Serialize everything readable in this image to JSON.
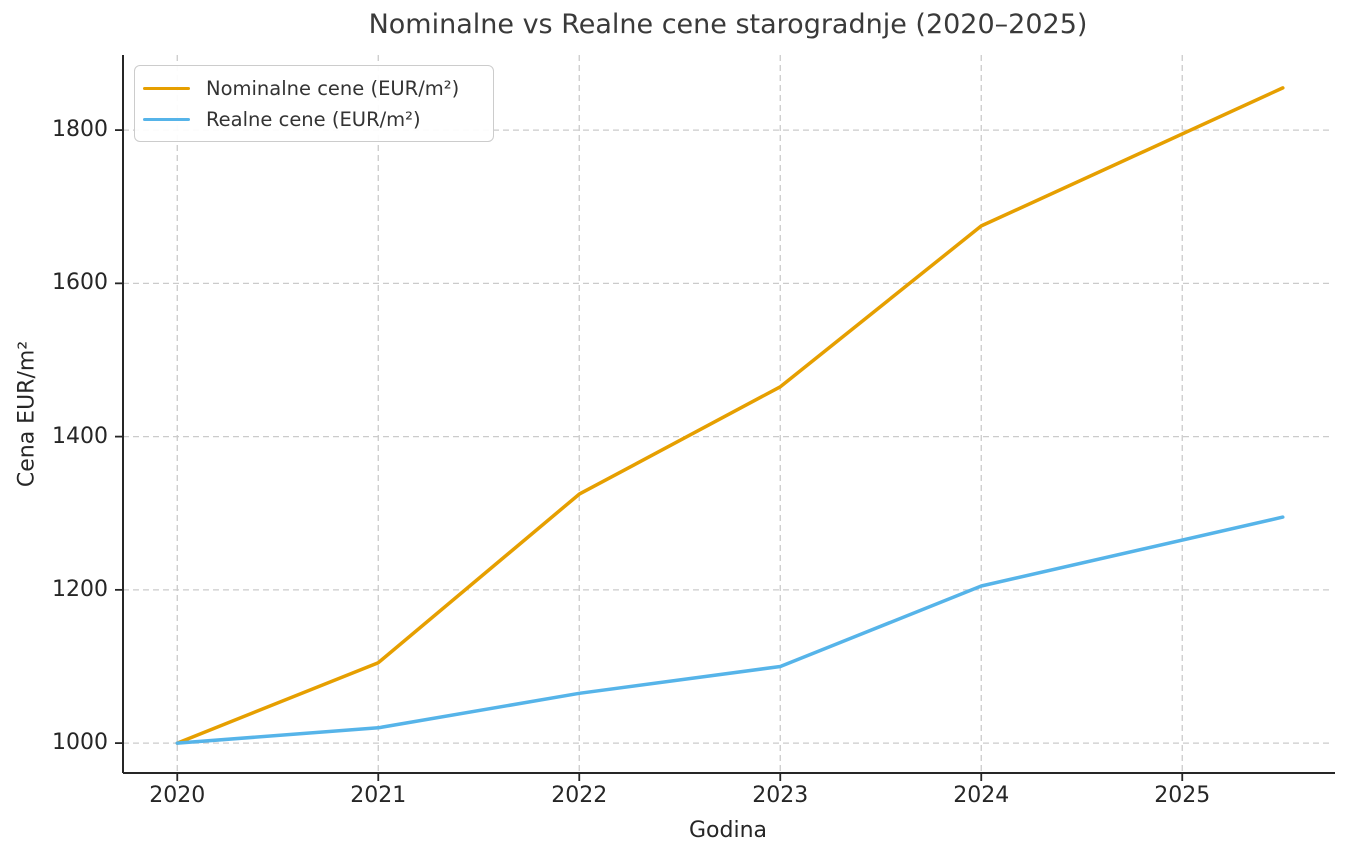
{
  "title": "Nominalne vs Realne cene starogradnje (2020–2025)",
  "chart_data": {
    "type": "line",
    "title": "Nominalne vs Realne cene starogradnje (2020–2025)",
    "x": [
      2020,
      2021,
      2022,
      2023,
      2024,
      2025.5
    ],
    "series": [
      {
        "name": "Nominalne cene (EUR/m²)",
        "color": "#E69F00",
        "values": [
          1000,
          1105,
          1325,
          1465,
          1675,
          1855
        ]
      },
      {
        "name": "Realne cene (EUR/m²)",
        "color": "#56B4E9",
        "values": [
          1000,
          1020,
          1065,
          1100,
          1205,
          1295
        ]
      }
    ],
    "xlabel": "Godina",
    "ylabel": "Cena EUR/m²",
    "xticks": [
      2020,
      2021,
      2022,
      2023,
      2024,
      2025
    ],
    "yticks": [
      1000,
      1200,
      1400,
      1600,
      1800
    ],
    "xlim": [
      2019.73,
      2025.75
    ],
    "ylim": [
      961,
      1898
    ],
    "grid": true,
    "grid_style": "dashed",
    "legend_position": "upper left"
  },
  "colors": {
    "background": "#FFFFFF",
    "grid": "#CBCBCB",
    "spine": "#262626",
    "tick_text": "#262626",
    "title_text": "#3A3A3A",
    "legend_border": "#CCCCCC"
  }
}
